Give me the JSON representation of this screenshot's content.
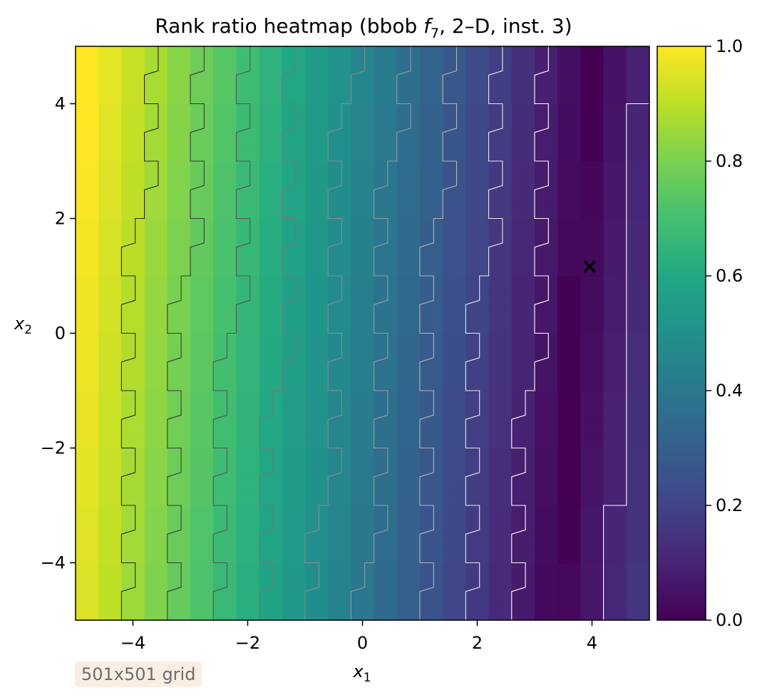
{
  "chart_data": {
    "type": "heatmap",
    "title": "Rank ratio heatmap (bbob f7, 2–D, inst. 3)",
    "title_parts": {
      "before": "Rank ratio heatmap (bbob ",
      "func_letter": "f",
      "func_sub": "7",
      "after": ", 2–D, inst. 3)"
    },
    "xlabel": {
      "var": "x",
      "sub": "1"
    },
    "ylabel": {
      "var": "x",
      "sub": "2"
    },
    "xlim": [
      -5,
      5
    ],
    "ylim": [
      -5,
      5
    ],
    "xticks": [
      -4,
      -2,
      0,
      2,
      4
    ],
    "xtick_labels": [
      "−4",
      "−2",
      "0",
      "2",
      "4"
    ],
    "yticks": [
      -4,
      -2,
      0,
      2,
      4
    ],
    "ytick_labels": [
      "−4",
      "−2",
      "0",
      "2",
      "4"
    ],
    "colormap": "viridis",
    "colorbar": {
      "range": [
        0,
        1
      ],
      "ticks": [
        0,
        0.2,
        0.4,
        0.6,
        0.8,
        1.0
      ],
      "tick_labels": [
        "0.0",
        "0.2",
        "0.4",
        "0.6",
        "0.8",
        "1.0"
      ]
    },
    "valley": {
      "x_at_y0": 3.7,
      "slope_dx_per_dy": 0.06,
      "value_scale": 8.7
    },
    "contour_levels": [
      0.1,
      0.2,
      0.3,
      0.4,
      0.5,
      0.6,
      0.7,
      0.8,
      0.9
    ],
    "contour_colors": {
      "0.1": "#ffffff",
      "0.2": "#e8e8e8",
      "0.3": "#b4b4b4",
      "0.4": "#999999",
      "0.5": "#8a8a8a",
      "0.6": "#777777",
      "0.7": "#555555",
      "0.8": "#3a3a3a",
      "0.9": "#2a2a2a"
    },
    "optimum": {
      "x": 3.96,
      "y": 1.17,
      "marker": "×",
      "color": "#ffffff"
    },
    "grid": false,
    "annotation": "501x501 grid"
  }
}
